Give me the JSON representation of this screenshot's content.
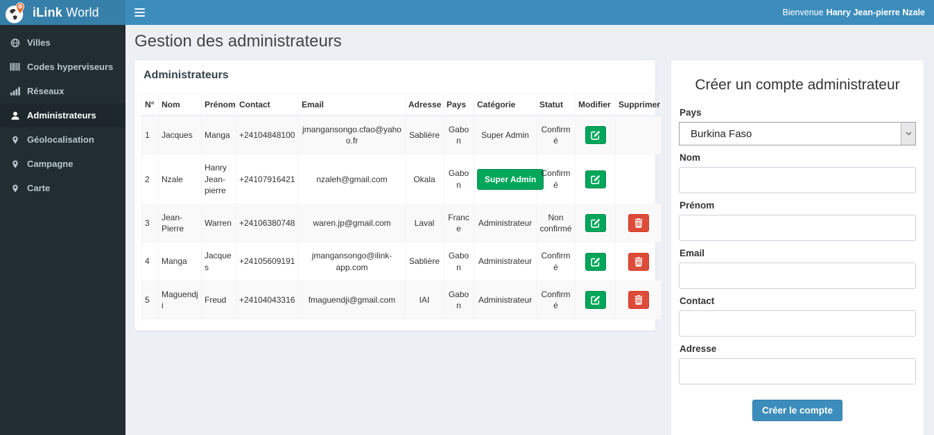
{
  "colors": {
    "navbar": "#3c8dbc",
    "logo_bg": "#367fa9",
    "sidebar": "#222d32",
    "sidebar_active": "#1e282c",
    "success": "#00a65a",
    "danger": "#dd4b39",
    "content_bg": "#ecf0f5",
    "submit": "#3c8dbc"
  },
  "header": {
    "brand_bold": "iLink",
    "brand_rest": " World",
    "welcome_prefix": "Bienvenue",
    "welcome_name": "Hanry Jean-pierre Nzale"
  },
  "sidebar": {
    "items": [
      {
        "label": "Villes",
        "icon": "globe-icon",
        "active": false
      },
      {
        "label": "Codes hyperviseurs",
        "icon": "barcode-icon",
        "active": false
      },
      {
        "label": "Réseaux",
        "icon": "signal-bars-icon",
        "active": false
      },
      {
        "label": "Administrateurs",
        "icon": "user-icon",
        "active": true
      },
      {
        "label": "Géolocalisation",
        "icon": "map-marker-icon",
        "active": false
      },
      {
        "label": "Campagne",
        "icon": "map-marker-icon",
        "active": false
      },
      {
        "label": "Carte",
        "icon": "map-marker-icon",
        "active": false
      }
    ]
  },
  "page": {
    "title": "Gestion des administrateurs"
  },
  "admin_panel": {
    "title": "Administrateurs",
    "columns": [
      {
        "key": "no",
        "label": "N°",
        "align": "left"
      },
      {
        "key": "nom",
        "label": "Nom",
        "align": "left"
      },
      {
        "key": "prenom",
        "label": "Prénom",
        "align": "left"
      },
      {
        "key": "contact",
        "label": "Contact",
        "align": "left"
      },
      {
        "key": "email",
        "label": "Email",
        "align": "center"
      },
      {
        "key": "adresse",
        "label": "Adresse",
        "align": "center"
      },
      {
        "key": "pays",
        "label": "Pays",
        "align": "center"
      },
      {
        "key": "categorie",
        "label": "Catégorie",
        "align": "center"
      },
      {
        "key": "statut",
        "label": "Statut",
        "align": "center"
      },
      {
        "key": "modifier",
        "label": "Modifier",
        "align": "center"
      },
      {
        "key": "supprimer",
        "label": "Supprimer",
        "align": "center"
      }
    ],
    "rows": [
      {
        "no": "1",
        "nom": "Jacques",
        "prenom": "Manga",
        "contact": "+24104848100",
        "email": "jmangansongo.cfao@yahoo.fr",
        "adresse": "Sablière",
        "pays": "Gabon",
        "categorie": "Super Admin",
        "categorie_badge": false,
        "statut": "Confirmé",
        "can_delete": false
      },
      {
        "no": "2",
        "nom": "Nzale",
        "prenom": "Hanry Jean-pierre",
        "contact": "+24107916421",
        "email": "nzaleh@gmail.com",
        "adresse": "Okala",
        "pays": "Gabon",
        "categorie": "Super Admin",
        "categorie_badge": true,
        "statut": "Confirmé",
        "can_delete": false
      },
      {
        "no": "3",
        "nom": "Jean-Pierre",
        "prenom": "Warren",
        "contact": "+24106380748",
        "email": "waren.jp@gmail.com",
        "adresse": "Laval",
        "pays": "France",
        "categorie": "Administrateur",
        "categorie_badge": false,
        "statut": "Non confirmé",
        "can_delete": true
      },
      {
        "no": "4",
        "nom": "Manga",
        "prenom": "Jacques",
        "contact": "+24105609191",
        "email": "jmangansongo@ilink-app.com",
        "adresse": "Sablière",
        "pays": "Gabon",
        "categorie": "Administrateur",
        "categorie_badge": false,
        "statut": "Confirmé",
        "can_delete": true
      },
      {
        "no": "5",
        "nom": "Maguendji",
        "prenom": "Freud",
        "contact": "+24104043316",
        "email": "fmaguendji@gmail.com",
        "adresse": "IAI",
        "pays": "Gabon",
        "categorie": "Administrateur",
        "categorie_badge": false,
        "statut": "Confirmé",
        "can_delete": true
      }
    ]
  },
  "form": {
    "title": "Créer un compte administrateur",
    "fields": [
      {
        "id": "pays",
        "label": "Pays",
        "type": "select",
        "value": "Burkina Faso"
      },
      {
        "id": "nom",
        "label": "Nom",
        "type": "text",
        "value": "",
        "placeholder": ""
      },
      {
        "id": "prenom",
        "label": "Prénom",
        "type": "text",
        "value": "",
        "placeholder": ""
      },
      {
        "id": "email",
        "label": "Email",
        "type": "text",
        "value": "",
        "placeholder": ""
      },
      {
        "id": "contact",
        "label": "Contact",
        "type": "text",
        "value": "",
        "placeholder": ""
      },
      {
        "id": "adresse",
        "label": "Adresse",
        "type": "text",
        "value": "",
        "placeholder": ""
      }
    ],
    "submit_label": "Créer le compte"
  }
}
